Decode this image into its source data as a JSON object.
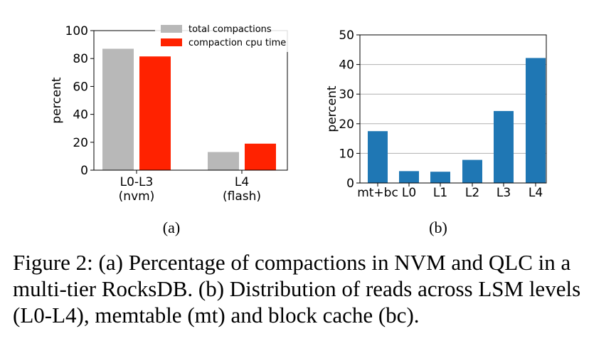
{
  "chart_data": [
    {
      "type": "bar",
      "categories": [
        "L0-L3",
        "L4"
      ],
      "category_sublabels": [
        "(nvm)",
        "(flash)"
      ],
      "series": [
        {
          "name": "total compactions",
          "values": [
            87,
            13
          ],
          "color": "#b8b8b8"
        },
        {
          "name": "compaction cpu time",
          "values": [
            81.5,
            19
          ],
          "color": "#ff2200"
        }
      ],
      "ylabel": "percent",
      "ylim": [
        0,
        100
      ],
      "yticks": [
        0,
        20,
        40,
        60,
        80,
        100
      ],
      "grid": false,
      "legend": "top-right",
      "subcaption": "(a)"
    },
    {
      "type": "bar",
      "categories": [
        "mt+bc",
        "L0",
        "L1",
        "L2",
        "L3",
        "L4"
      ],
      "series": [
        {
          "values": [
            17.5,
            4,
            3.8,
            7.8,
            24.3,
            42.2
          ],
          "color": "#1f77b4"
        }
      ],
      "ylabel": "percent",
      "ylim": [
        0,
        50
      ],
      "yticks": [
        0,
        10,
        20,
        30,
        40,
        50
      ],
      "grid": true,
      "subcaption": "(b)"
    }
  ],
  "caption": "Figure 2: (a) Percentage of compactions in NVM and QLC in a multi-tier RocksDB. (b) Distribution of reads across LSM levels (L0-L4), memtable (mt) and block cache (bc)."
}
